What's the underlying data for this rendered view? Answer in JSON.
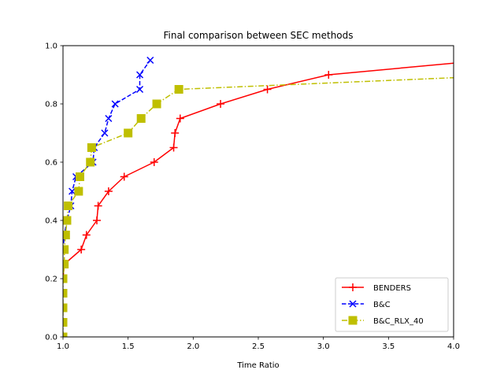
{
  "chart_data": {
    "type": "line",
    "title": "Final comparison between SEC methods",
    "xlabel": "Time Ratio",
    "ylabel": "",
    "xlim": [
      1.0,
      4.0
    ],
    "ylim": [
      0.0,
      1.0
    ],
    "xticks": [
      1.0,
      1.5,
      2.0,
      2.5,
      3.0,
      3.5,
      4.0
    ],
    "yticks": [
      0.0,
      0.2,
      0.4,
      0.6,
      0.8,
      1.0
    ],
    "xtick_labels": [
      "1.0",
      "1.5",
      "2.0",
      "2.5",
      "3.0",
      "3.5",
      "4.0"
    ],
    "ytick_labels": [
      "0.0",
      "0.2",
      "0.4",
      "0.6",
      "0.8",
      "1.0"
    ],
    "grid": false,
    "legend_position": "lower-right",
    "series": [
      {
        "name": "BENDERS",
        "color": "#ff0000",
        "linestyle": "solid",
        "marker": "plus",
        "points": [
          [
            1.0,
            0.2
          ],
          [
            1.01,
            0.25
          ],
          [
            1.14,
            0.3
          ],
          [
            1.18,
            0.35
          ],
          [
            1.26,
            0.4
          ],
          [
            1.27,
            0.45
          ],
          [
            1.35,
            0.5
          ],
          [
            1.47,
            0.55
          ],
          [
            1.7,
            0.6
          ],
          [
            1.85,
            0.65
          ],
          [
            1.86,
            0.7
          ],
          [
            1.9,
            0.75
          ],
          [
            2.21,
            0.8
          ],
          [
            2.57,
            0.85
          ],
          [
            3.04,
            0.9
          ],
          [
            4.0,
            0.94
          ]
        ],
        "marker_count": 15
      },
      {
        "name": "B&C",
        "color": "#0000ff",
        "linestyle": "dashed",
        "marker": "x",
        "points": [
          [
            1.0,
            0.3
          ],
          [
            1.01,
            0.35
          ],
          [
            1.03,
            0.4
          ],
          [
            1.06,
            0.45
          ],
          [
            1.07,
            0.5
          ],
          [
            1.1,
            0.55
          ],
          [
            1.23,
            0.6
          ],
          [
            1.24,
            0.65
          ],
          [
            1.32,
            0.7
          ],
          [
            1.35,
            0.75
          ],
          [
            1.4,
            0.8
          ],
          [
            1.59,
            0.85
          ],
          [
            1.59,
            0.9
          ],
          [
            1.67,
            0.95
          ]
        ],
        "marker_count": 14
      },
      {
        "name": "B&C_RLX_40",
        "color": "#bfbf00",
        "linestyle": "dashdot",
        "marker": "square",
        "points": [
          [
            1.0,
            0.0
          ],
          [
            1.0,
            0.05
          ],
          [
            1.0,
            0.1
          ],
          [
            1.0,
            0.15
          ],
          [
            1.0,
            0.2
          ],
          [
            1.01,
            0.25
          ],
          [
            1.01,
            0.3
          ],
          [
            1.02,
            0.35
          ],
          [
            1.03,
            0.4
          ],
          [
            1.04,
            0.45
          ],
          [
            1.12,
            0.5
          ],
          [
            1.13,
            0.55
          ],
          [
            1.21,
            0.6
          ],
          [
            1.22,
            0.65
          ],
          [
            1.5,
            0.7
          ],
          [
            1.6,
            0.75
          ],
          [
            1.72,
            0.8
          ],
          [
            1.89,
            0.85
          ],
          [
            4.0,
            0.89
          ]
        ],
        "marker_count": 18
      }
    ]
  }
}
